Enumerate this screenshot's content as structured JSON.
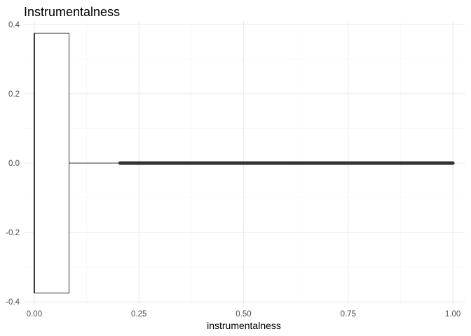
{
  "chart_data": {
    "type": "boxplot",
    "title": "Instrumentalness",
    "xlabel": "instrumentalness",
    "ylabel": "",
    "orientation": "horizontal",
    "xlim": [
      -0.025,
      1.03
    ],
    "ylim": [
      -0.41,
      0.41
    ],
    "x_ticks": [
      0.0,
      0.25,
      0.5,
      0.75,
      1.0
    ],
    "x_tick_labels": [
      "0.00",
      "0.25",
      "0.50",
      "0.75",
      "1.00"
    ],
    "y_ticks": [
      -0.4,
      -0.2,
      0.0,
      0.2,
      0.4
    ],
    "y_tick_labels": [
      "-0.4",
      "-0.2",
      "0.0",
      "0.2",
      "0.4"
    ],
    "grid": true,
    "box": {
      "min": 0.0,
      "q1": 0.0,
      "median": 0.0,
      "q3": 0.083,
      "whisker_low": 0.0,
      "whisker_high": 0.205,
      "box_half_height": 0.375
    },
    "outliers": {
      "min": 0.205,
      "max": 1.0,
      "description_range": [
        0.205,
        1.0
      ],
      "y": 0.0
    },
    "colors": {
      "box_fill": "#ffffff",
      "box_stroke": "#333333",
      "outlier": "#333333",
      "grid_major": "#ebebeb",
      "grid_minor": "#f5f5f5"
    }
  }
}
